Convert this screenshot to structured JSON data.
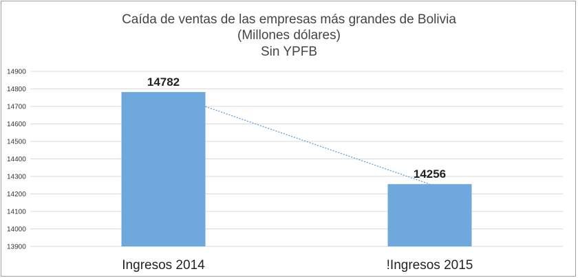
{
  "chart_data": {
    "type": "bar",
    "title_lines": [
      "Caída de ventas de las empresas más grandes de Bolivia",
      "(Millones dólares)",
      "Sin   YPFB"
    ],
    "categories": [
      "Ingresos 2014",
      "!Ingresos 2015"
    ],
    "values": [
      14782,
      14256
    ],
    "data_labels": [
      "14782",
      "14256"
    ],
    "ylim": [
      13900,
      14900
    ],
    "yticks": [
      "13900",
      "14000",
      "14100",
      "14200",
      "14300",
      "14400",
      "14500",
      "14600",
      "14700",
      "14800",
      "14900"
    ],
    "grid": true,
    "bar_color": "#6FA8DC",
    "trendline": {
      "style": "dotted",
      "color": "#5B9BD5"
    },
    "legend": "none"
  }
}
